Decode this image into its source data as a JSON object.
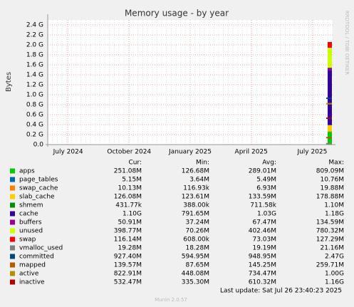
{
  "chart_data": {
    "type": "area",
    "title": "Memory usage - by year",
    "y_label": "Bytes",
    "side_label": "RRDTOOL / TOBI OETIKER",
    "ylim": [
      0,
      2.5
    ],
    "yticks": [
      {
        "value": 0,
        "label": "0.0"
      },
      {
        "value": 0.2,
        "label": "0.2 G"
      },
      {
        "value": 0.4,
        "label": "0.4 G"
      },
      {
        "value": 0.6,
        "label": "0.6 G"
      },
      {
        "value": 0.8,
        "label": "0.8 G"
      },
      {
        "value": 1.0,
        "label": "1.0 G"
      },
      {
        "value": 1.2,
        "label": "1.2 G"
      },
      {
        "value": 1.4,
        "label": "1.4 G"
      },
      {
        "value": 1.6,
        "label": "1.6 G"
      },
      {
        "value": 1.8,
        "label": "1.8 G"
      },
      {
        "value": 2.0,
        "label": "2.0 G"
      },
      {
        "value": 2.2,
        "label": "2.2 G"
      },
      {
        "value": 2.4,
        "label": "2.4 G"
      }
    ],
    "xlim": [
      "2024-06",
      "2025-08"
    ],
    "xticks": [
      {
        "value": "2024-07",
        "label": "July 2024"
      },
      {
        "value": "2024-10",
        "label": "October 2024"
      },
      {
        "value": "2025-01",
        "label": "January 2025"
      },
      {
        "value": "2025-04",
        "label": "April 2025"
      },
      {
        "value": "2025-07",
        "label": "July 2025"
      }
    ],
    "grid": true,
    "columns": [
      "Cur:",
      "Min:",
      "Avg:",
      "Max:"
    ],
    "series": [
      {
        "name": "apps",
        "color": "#00cc00",
        "stack": true,
        "values": [
          0.25
        ],
        "cur": "251.08M",
        "min": "126.68M",
        "avg": "289.01M",
        "max": "809.09M"
      },
      {
        "name": "page_tables",
        "color": "#0066b3",
        "stack": true,
        "values": [
          0.005
        ],
        "cur": "5.15M",
        "min": "3.64M",
        "avg": "5.49M",
        "max": "10.76M"
      },
      {
        "name": "swap_cache",
        "color": "#ff8000",
        "stack": true,
        "values": [
          0.01
        ],
        "cur": "10.13M",
        "min": "116.93k",
        "avg": "6.93M",
        "max": "19.88M"
      },
      {
        "name": "slab_cache",
        "color": "#ffcc00",
        "stack": true,
        "values": [
          0.126
        ],
        "cur": "126.08M",
        "min": "123.61M",
        "avg": "133.59M",
        "max": "178.88M"
      },
      {
        "name": "shmem",
        "color": "#008f00",
        "stack": true,
        "values": [
          0.0004
        ],
        "cur": "431.77k",
        "min": "388.00k",
        "avg": "711.58k",
        "max": "1.10M"
      },
      {
        "name": "cache",
        "color": "#330099",
        "stack": true,
        "values": [
          1.1
        ],
        "cur": "1.10G",
        "min": "791.65M",
        "avg": "1.03G",
        "max": "1.18G"
      },
      {
        "name": "buffers",
        "color": "#990099",
        "stack": true,
        "values": [
          0.05
        ],
        "cur": "50.91M",
        "min": "37.24M",
        "avg": "67.47M",
        "max": "134.59M"
      },
      {
        "name": "unused",
        "color": "#ccff00",
        "stack": true,
        "values": [
          0.4
        ],
        "cur": "398.77M",
        "min": "70.26M",
        "avg": "402.46M",
        "max": "780.32M"
      },
      {
        "name": "swap",
        "color": "#ff0000",
        "stack": true,
        "values": [
          0.116
        ],
        "cur": "116.14M",
        "min": "608.00k",
        "avg": "73.03M",
        "max": "127.29M"
      },
      {
        "name": "vmalloc_used",
        "color": "#808080",
        "stack": false,
        "values": [
          0.019
        ],
        "cur": "19.28M",
        "min": "18.28M",
        "avg": "19.19M",
        "max": "21.16M"
      },
      {
        "name": "committed",
        "color": "#00487d",
        "stack": false,
        "values": [
          0.93
        ],
        "cur": "927.40M",
        "min": "594.95M",
        "avg": "948.95M",
        "max": "2.47G"
      },
      {
        "name": "mapped",
        "color": "#b35a00",
        "stack": false,
        "values": [
          0.14
        ],
        "cur": "139.57M",
        "min": "87.65M",
        "avg": "145.25M",
        "max": "259.71M"
      },
      {
        "name": "active",
        "color": "#b38f00",
        "stack": false,
        "values": [
          0.82
        ],
        "cur": "822.91M",
        "min": "448.08M",
        "avg": "734.47M",
        "max": "1.00G"
      },
      {
        "name": "inactive",
        "color": "#b30000",
        "stack": false,
        "values": [
          0.53
        ],
        "cur": "532.47M",
        "min": "335.30M",
        "avg": "610.32M",
        "max": "1.16G"
      }
    ],
    "last_update": "Last update: Sat Jul 26 23:40:23 2025",
    "footer": "Munin 2.0.57"
  }
}
